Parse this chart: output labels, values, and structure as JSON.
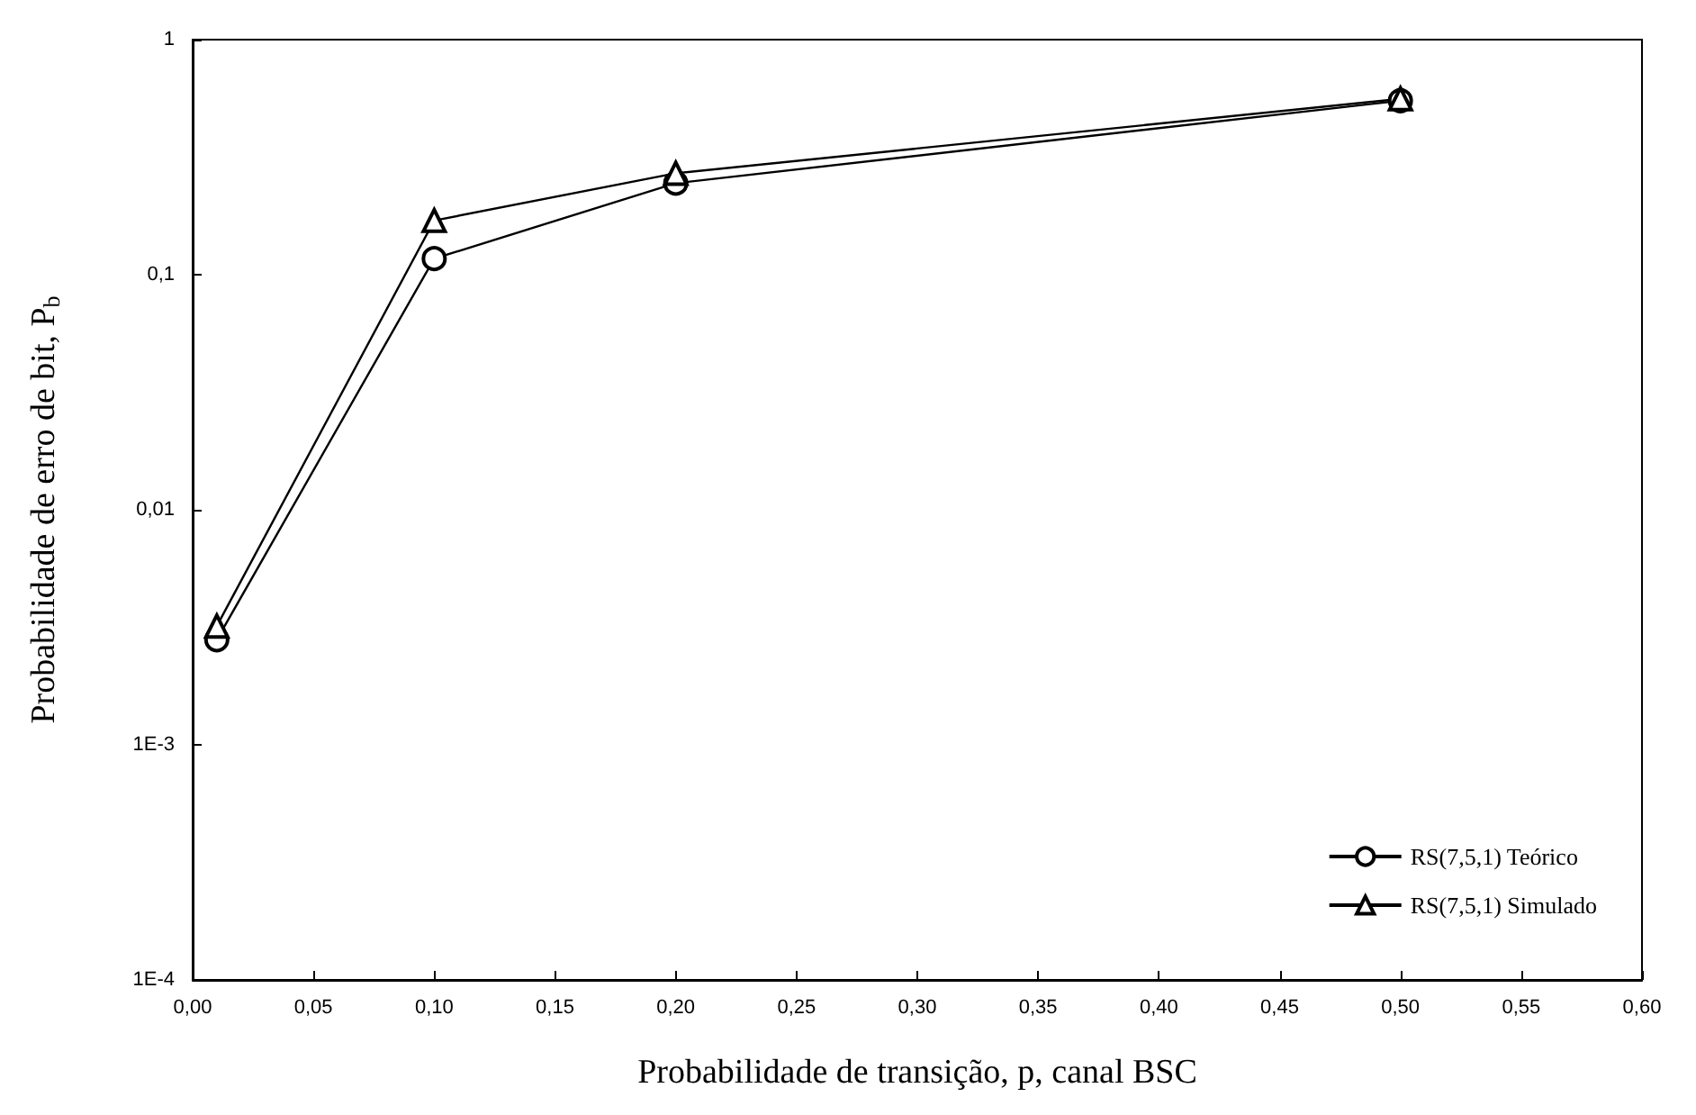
{
  "chart_data": {
    "type": "line",
    "xlabel": "Probabilidade de transição, p, canal BSC",
    "ylabel": "Probabilidade de erro de bit, P$_{b}$",
    "x": [
      0.01,
      0.1,
      0.2,
      0.5
    ],
    "series": [
      {
        "name": "RS(7,5,1) Teórico",
        "color": "#000000",
        "marker": "circle",
        "values": [
          0.0028,
          0.117,
          0.245,
          0.55
        ]
      },
      {
        "name": "RS(7,5,1) Simulado",
        "color": "#000000",
        "marker": "triangle",
        "values": [
          0.0032,
          0.17,
          0.27,
          0.56
        ]
      }
    ],
    "xlim": [
      0,
      0.6
    ],
    "xticks": [
      {
        "value": 0,
        "label": "0,00"
      },
      {
        "value": 0.05,
        "label": "0,05"
      },
      {
        "value": 0.1,
        "label": "0,10"
      },
      {
        "value": 0.15,
        "label": "0,15"
      },
      {
        "value": 0.2,
        "label": "0,20"
      },
      {
        "value": 0.25,
        "label": "0,25"
      },
      {
        "value": 0.3,
        "label": "0,30"
      },
      {
        "value": 0.35,
        "label": "0,35"
      },
      {
        "value": 0.4,
        "label": "0,40"
      },
      {
        "value": 0.45,
        "label": "0,45"
      },
      {
        "value": 0.5,
        "label": "0,50"
      },
      {
        "value": 0.55,
        "label": "0,55"
      },
      {
        "value": 0.6,
        "label": "0,60"
      }
    ],
    "ylim": [
      0.0001,
      1
    ],
    "yticks": [
      {
        "value": 0.0001,
        "label": "1E-4"
      },
      {
        "value": 0.001,
        "label": "1E-3"
      },
      {
        "value": 0.01,
        "label": "0,01"
      },
      {
        "value": 0.1,
        "label": "0,1"
      },
      {
        "value": 1,
        "label": "1"
      }
    ],
    "log": "y",
    "grid": false,
    "legend": "bottom right",
    "line_style": "solid"
  }
}
